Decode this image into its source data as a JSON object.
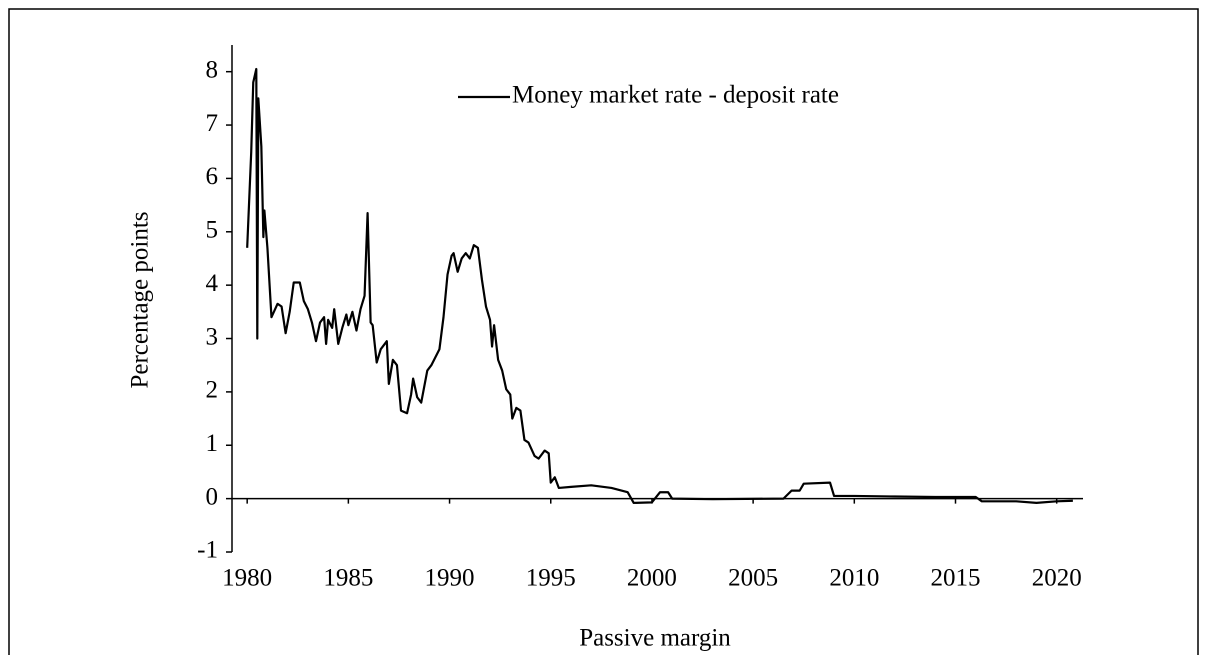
{
  "chart_data": {
    "type": "line",
    "xlabel": "Passive margin",
    "ylabel": "Percentage points",
    "xlim": [
      1979.25,
      2021.3
    ],
    "xticks": [
      1980,
      1985,
      1990,
      1995,
      2000,
      2005,
      2010,
      2015,
      2020
    ],
    "ylim": [
      -1,
      8.5
    ],
    "yticks": [
      -1,
      0,
      1,
      2,
      3,
      4,
      5,
      6,
      7,
      8
    ],
    "legend": "top",
    "x": [
      1980.0,
      1980.2,
      1980.3,
      1980.45,
      1980.5,
      1980.55,
      1980.7,
      1980.8,
      1980.85,
      1981.0,
      1981.2,
      1981.5,
      1981.7,
      1981.9,
      1982.1,
      1982.3,
      1982.6,
      1982.8,
      1983.0,
      1983.2,
      1983.4,
      1983.6,
      1983.8,
      1983.9,
      1984.0,
      1984.2,
      1984.3,
      1984.5,
      1984.7,
      1984.9,
      1985.0,
      1985.2,
      1985.4,
      1985.6,
      1985.8,
      1985.95,
      1986.1,
      1986.2,
      1986.4,
      1986.6,
      1986.9,
      1987.0,
      1987.2,
      1987.4,
      1987.6,
      1987.9,
      1988.1,
      1988.2,
      1988.4,
      1988.6,
      1988.9,
      1989.1,
      1989.3,
      1989.5,
      1989.7,
      1989.9,
      1990.1,
      1990.2,
      1990.4,
      1990.6,
      1990.8,
      1991.0,
      1991.2,
      1991.4,
      1991.6,
      1991.8,
      1992.0,
      1992.1,
      1992.2,
      1992.4,
      1992.6,
      1992.8,
      1993.0,
      1993.1,
      1993.3,
      1993.5,
      1993.7,
      1993.9,
      1994.2,
      1994.4,
      1994.7,
      1994.9,
      1995.0,
      1995.2,
      1995.4,
      1996,
      1997,
      1998,
      1998.8,
      1999.1,
      2000,
      2000.4,
      2000.8,
      2001,
      2003,
      2006.5,
      2006.9,
      2007.3,
      2007.5,
      2008.8,
      2009,
      2010,
      2012,
      2014,
      2016,
      2016.3,
      2018,
      2019,
      2020,
      2020.8
    ],
    "series": [
      {
        "name": "Money market rate - deposit rate",
        "color": "#000000",
        "values": [
          4.7,
          6.5,
          7.8,
          8.05,
          3.0,
          7.5,
          6.6,
          4.9,
          5.4,
          4.7,
          3.4,
          3.65,
          3.6,
          3.1,
          3.5,
          4.05,
          4.05,
          3.7,
          3.55,
          3.3,
          2.95,
          3.3,
          3.4,
          2.9,
          3.35,
          3.2,
          3.55,
          2.9,
          3.2,
          3.45,
          3.25,
          3.5,
          3.15,
          3.55,
          3.8,
          5.35,
          3.3,
          3.25,
          2.55,
          2.8,
          2.95,
          2.15,
          2.6,
          2.5,
          1.65,
          1.6,
          1.95,
          2.25,
          1.9,
          1.8,
          2.4,
          2.5,
          2.65,
          2.8,
          3.4,
          4.2,
          4.55,
          4.6,
          4.25,
          4.5,
          4.6,
          4.5,
          4.75,
          4.7,
          4.1,
          3.6,
          3.35,
          2.85,
          3.25,
          2.6,
          2.4,
          2.05,
          1.95,
          1.5,
          1.7,
          1.65,
          1.1,
          1.05,
          0.8,
          0.75,
          0.9,
          0.85,
          0.3,
          0.4,
          0.2,
          0.22,
          0.25,
          0.2,
          0.12,
          -0.08,
          -0.07,
          0.12,
          0.12,
          0,
          -0.01,
          0.0,
          0.15,
          0.15,
          0.28,
          0.3,
          0.05,
          0.05,
          0.04,
          0.03,
          0.03,
          -0.05,
          -0.05,
          -0.08,
          -0.05,
          -0.04
        ]
      }
    ]
  }
}
